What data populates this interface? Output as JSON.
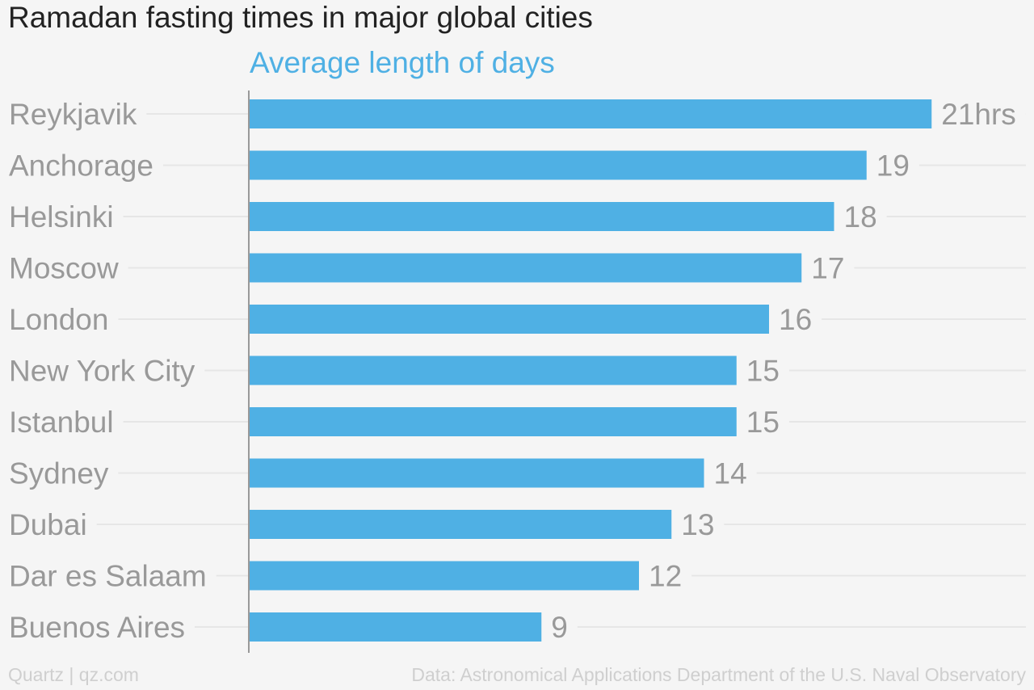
{
  "title": "Ramadan fasting times in major global cities",
  "series_label": "Average length of days",
  "colors": {
    "bar": "#4fb0e4",
    "series_label": "#4fb0e4",
    "category_label": "#999999",
    "value_label": "#999999",
    "gridline": "#e6e6e6",
    "axis": "#999999"
  },
  "chart_data": {
    "type": "bar",
    "orientation": "horizontal",
    "categories": [
      "Reykjavik",
      "Anchorage",
      "Helsinki",
      "Moscow",
      "London",
      "New York City",
      "Istanbul",
      "Sydney",
      "Dubai",
      "Dar es Salaam",
      "Buenos Aires"
    ],
    "series": [
      {
        "name": "Average length of days",
        "values": [
          21,
          19,
          18,
          17,
          16,
          15,
          15,
          14,
          13,
          12,
          9
        ]
      }
    ],
    "value_labels": [
      "21hrs",
      "19",
      "18",
      "17",
      "16",
      "15",
      "15",
      "14",
      "13",
      "12",
      "9"
    ],
    "xlim": [
      0,
      21
    ],
    "grid": true,
    "title": "Ramadan fasting times in major global cities"
  },
  "footer": {
    "left": "Quartz | qz.com",
    "right": "Data: Astronomical Applications Department of the U.S. Naval Observatory"
  }
}
